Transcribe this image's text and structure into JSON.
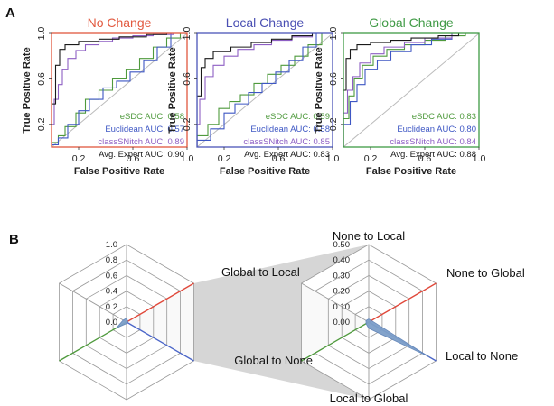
{
  "panel_a": {
    "letter": "A",
    "xlabel": "False Positive Rate",
    "ylabel": "True Positive Rate",
    "x_ticks": [
      "0.2",
      "0.6",
      "1.0"
    ],
    "y_ticks": [
      "0.2",
      "0.6",
      "1.0"
    ],
    "colors": {
      "esdc": "#4f9a3d",
      "euclidean": "#3e57c4",
      "classsnitch": "#8e5fc4",
      "expert": "#1a1a1a",
      "diagonal": "#bbbbbb"
    }
  },
  "panel_b": {
    "letter": "B",
    "colors": {
      "fill": "#7d9fc9",
      "shade": "#cfcfcf",
      "red": "#e0483a",
      "blue": "#4a65c8",
      "green": "#4f9a3d",
      "grid": "#9a9a9a"
    }
  },
  "chart_data": [
    {
      "type": "line",
      "title": "No Change",
      "title_color": "#e25a40",
      "frame_color": "#e0573e",
      "xlabel": "False Positive Rate",
      "ylabel": "True Positive Rate",
      "xlim": [
        0,
        1
      ],
      "ylim": [
        0,
        1
      ],
      "series": [
        {
          "name": "eSDC",
          "auc_label": "eSDC AUC: 0.58",
          "color": "#4f9a3d",
          "x": [
            0,
            0.05,
            0.1,
            0.18,
            0.25,
            0.35,
            0.45,
            0.55,
            0.65,
            0.75,
            0.85,
            0.95,
            1.0
          ],
          "y": [
            0,
            0.04,
            0.1,
            0.18,
            0.3,
            0.42,
            0.5,
            0.6,
            0.68,
            0.78,
            0.88,
            0.96,
            1.0
          ]
        },
        {
          "name": "Euclidean",
          "auc_label": "Euclidean AUC: 0.57",
          "color": "#3e57c4",
          "x": [
            0,
            0.05,
            0.12,
            0.2,
            0.28,
            0.38,
            0.48,
            0.58,
            0.68,
            0.78,
            0.88,
            1.0
          ],
          "y": [
            0,
            0.02,
            0.08,
            0.2,
            0.32,
            0.42,
            0.52,
            0.58,
            0.66,
            0.76,
            0.88,
            1.0
          ]
        },
        {
          "name": "classSNitch",
          "auc_label": "classSNitch AUC: 0.89",
          "color": "#8e5fc4",
          "x": [
            0,
            0.02,
            0.05,
            0.08,
            0.12,
            0.18,
            0.25,
            0.35,
            0.45,
            0.6,
            0.75,
            0.9,
            1.0
          ],
          "y": [
            0,
            0.2,
            0.42,
            0.55,
            0.68,
            0.78,
            0.85,
            0.9,
            0.93,
            0.96,
            0.98,
            0.99,
            1.0
          ]
        },
        {
          "name": "Avg. Expert",
          "auc_label": "Avg. Expert AUC: 0.90",
          "color": "#1a1a1a",
          "x": [
            0,
            0.03,
            0.06,
            0.1,
            0.2,
            0.35,
            0.5,
            0.7,
            0.85,
            1.0
          ],
          "y": [
            0,
            0.38,
            0.72,
            0.86,
            0.9,
            0.93,
            0.95,
            0.97,
            0.99,
            1.0
          ]
        }
      ]
    },
    {
      "type": "line",
      "title": "Local Change",
      "title_color": "#4a4fb3",
      "frame_color": "#4a55b8",
      "xlabel": "False Positive Rate",
      "ylabel": "True Positive Rate",
      "xlim": [
        0,
        1
      ],
      "ylim": [
        0,
        1
      ],
      "series": [
        {
          "name": "eSDC",
          "auc_label": "eSDC AUC: 0.59",
          "color": "#4f9a3d",
          "x": [
            0,
            0.08,
            0.16,
            0.24,
            0.32,
            0.42,
            0.52,
            0.62,
            0.72,
            0.82,
            0.92,
            1.0
          ],
          "y": [
            0,
            0.1,
            0.2,
            0.34,
            0.4,
            0.46,
            0.56,
            0.64,
            0.72,
            0.8,
            0.9,
            1.0
          ]
        },
        {
          "name": "Euclidean",
          "auc_label": "Euclidean AUC: 0.58",
          "color": "#3e57c4",
          "x": [
            0,
            0.1,
            0.2,
            0.28,
            0.38,
            0.48,
            0.58,
            0.68,
            0.78,
            0.88,
            1.0
          ],
          "y": [
            0,
            0.06,
            0.16,
            0.3,
            0.38,
            0.48,
            0.56,
            0.66,
            0.76,
            0.88,
            1.0
          ]
        },
        {
          "name": "classSNitch",
          "auc_label": "classSNitch AUC: 0.85",
          "color": "#8e5fc4",
          "x": [
            0,
            0.02,
            0.06,
            0.12,
            0.2,
            0.3,
            0.42,
            0.55,
            0.7,
            0.85,
            1.0
          ],
          "y": [
            0,
            0.2,
            0.42,
            0.62,
            0.72,
            0.8,
            0.86,
            0.9,
            0.94,
            0.97,
            1.0
          ]
        },
        {
          "name": "Avg. Expert",
          "auc_label": "Avg. Expert AUC: 0.83",
          "color": "#1a1a1a",
          "x": [
            0,
            0.03,
            0.06,
            0.12,
            0.25,
            0.4,
            0.55,
            0.7,
            0.85,
            1.0
          ],
          "y": [
            0,
            0.45,
            0.7,
            0.78,
            0.84,
            0.88,
            0.92,
            0.95,
            0.98,
            1.0
          ]
        }
      ]
    },
    {
      "type": "line",
      "title": "Global Change",
      "title_color": "#3f9a45",
      "frame_color": "#3f9a45",
      "xlabel": "False Positive Rate",
      "ylabel": "True Positive Rate",
      "xlim": [
        0,
        1
      ],
      "ylim": [
        0,
        1
      ],
      "series": [
        {
          "name": "eSDC",
          "auc_label": "eSDC AUC: 0.83",
          "color": "#4f9a3d",
          "x": [
            0,
            0.04,
            0.08,
            0.14,
            0.22,
            0.32,
            0.45,
            0.6,
            0.75,
            0.9,
            1.0
          ],
          "y": [
            0,
            0.25,
            0.45,
            0.6,
            0.72,
            0.8,
            0.86,
            0.9,
            0.94,
            0.98,
            1.0
          ]
        },
        {
          "name": "Euclidean",
          "auc_label": "Euclidean AUC: 0.80",
          "color": "#3e57c4",
          "x": [
            0,
            0.05,
            0.1,
            0.16,
            0.25,
            0.35,
            0.5,
            0.65,
            0.8,
            1.0
          ],
          "y": [
            0,
            0.2,
            0.4,
            0.55,
            0.68,
            0.76,
            0.84,
            0.9,
            0.95,
            1.0
          ]
        },
        {
          "name": "classSNitch",
          "auc_label": "classSNitch AUC: 0.84",
          "color": "#8e5fc4",
          "x": [
            0,
            0.03,
            0.07,
            0.12,
            0.2,
            0.3,
            0.45,
            0.6,
            0.8,
            1.0
          ],
          "y": [
            0,
            0.3,
            0.5,
            0.62,
            0.74,
            0.82,
            0.88,
            0.92,
            0.96,
            1.0
          ]
        },
        {
          "name": "Avg. Expert",
          "auc_label": "Avg. Expert AUC: 0.88",
          "color": "#1a1a1a",
          "x": [
            0,
            0.02,
            0.05,
            0.1,
            0.2,
            0.35,
            0.5,
            0.7,
            0.85,
            1.0
          ],
          "y": [
            0,
            0.5,
            0.78,
            0.86,
            0.9,
            0.92,
            0.94,
            0.96,
            0.98,
            1.0
          ]
        }
      ]
    },
    {
      "type": "radar",
      "axes": [
        "",
        "Global to Local",
        "",
        "",
        "",
        ""
      ],
      "r_ticks": [
        "1.0",
        "0.8",
        "0.6",
        "0.4",
        "0.2",
        "0.0"
      ],
      "rlim": [
        0,
        1.0
      ],
      "values": [
        0.05,
        0.02,
        0.01,
        0.02,
        0.15,
        0.05
      ]
    },
    {
      "type": "radar",
      "axes": [
        "None to Local",
        "None to Global",
        "Local to None",
        "Local to Global",
        "Global to None",
        "Global to Local"
      ],
      "r_ticks": [
        "0.50",
        "0.40",
        "0.30",
        "0.20",
        "0.10",
        "0.00"
      ],
      "rlim": [
        0,
        0.5
      ],
      "values": [
        0.02,
        0.02,
        0.45,
        0.04,
        0.02,
        0.02
      ]
    }
  ]
}
